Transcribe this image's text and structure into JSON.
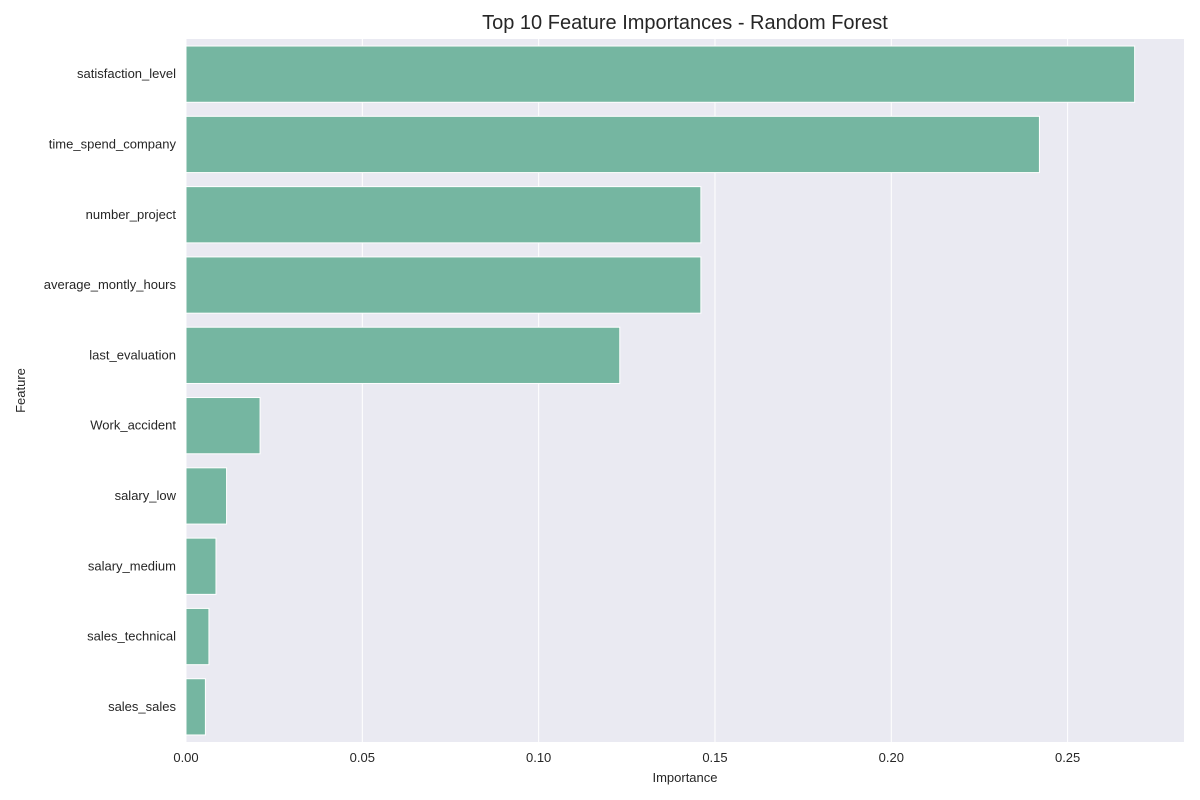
{
  "chart_data": {
    "type": "bar",
    "orientation": "horizontal",
    "title": "Top 10 Feature Importances - Random Forest",
    "xlabel": "Importance",
    "ylabel": "Feature",
    "categories": [
      "satisfaction_level",
      "time_spend_company",
      "number_project",
      "average_montly_hours",
      "last_evaluation",
      "Work_accident",
      "salary_low",
      "salary_medium",
      "sales_technical",
      "sales_sales"
    ],
    "values": [
      0.269,
      0.242,
      0.146,
      0.146,
      0.123,
      0.021,
      0.0115,
      0.0085,
      0.0065,
      0.0055
    ],
    "xlim": [
      0,
      0.283
    ],
    "xticks": [
      0.0,
      0.05,
      0.1,
      0.15,
      0.2,
      0.25
    ],
    "xtick_labels": [
      "0.00",
      "0.05",
      "0.10",
      "0.15",
      "0.20",
      "0.25"
    ],
    "grid": true,
    "bar_color": "#75B6A1",
    "background_color": "#EAEAF2",
    "grid_color": "#FFFFFF"
  }
}
